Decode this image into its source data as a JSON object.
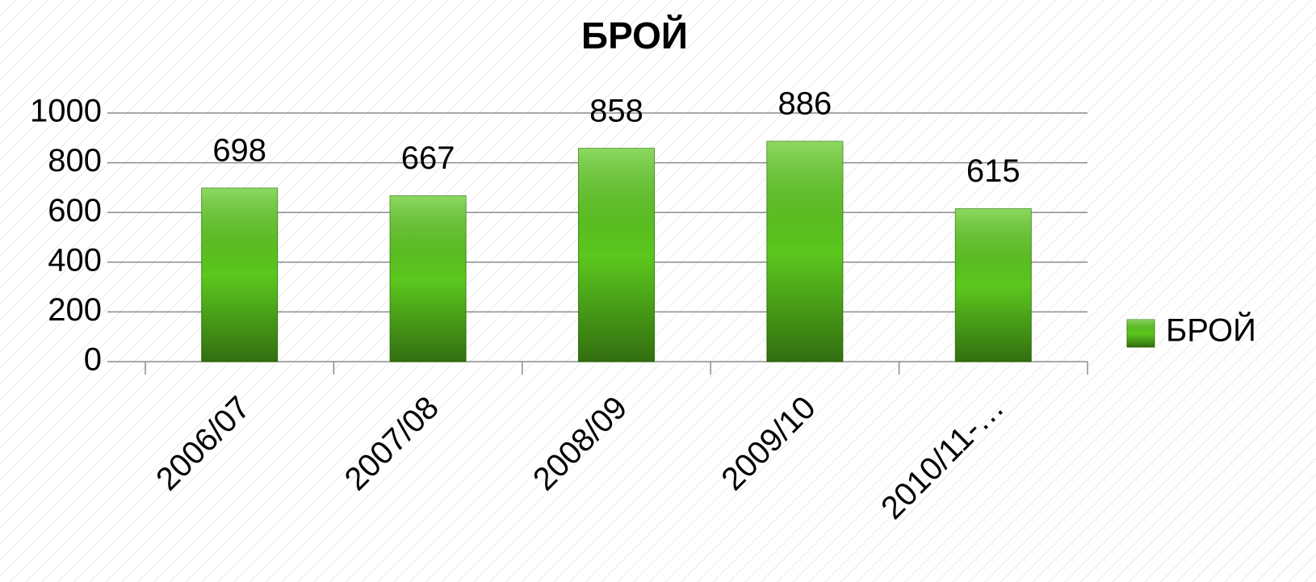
{
  "chart_data": {
    "type": "bar",
    "title": "БРОЙ",
    "categories": [
      "2006/07",
      "2007/08",
      "2008/09",
      "2009/10",
      "2010/11-…"
    ],
    "series": [
      {
        "name": "БРОЙ",
        "color": "#5cc81e",
        "values": [
          698,
          667,
          858,
          886,
          615
        ]
      }
    ],
    "ylim": [
      0,
      1000
    ],
    "yticks": [
      0,
      200,
      400,
      600,
      800,
      1000
    ],
    "grid": true,
    "legend": "right"
  }
}
